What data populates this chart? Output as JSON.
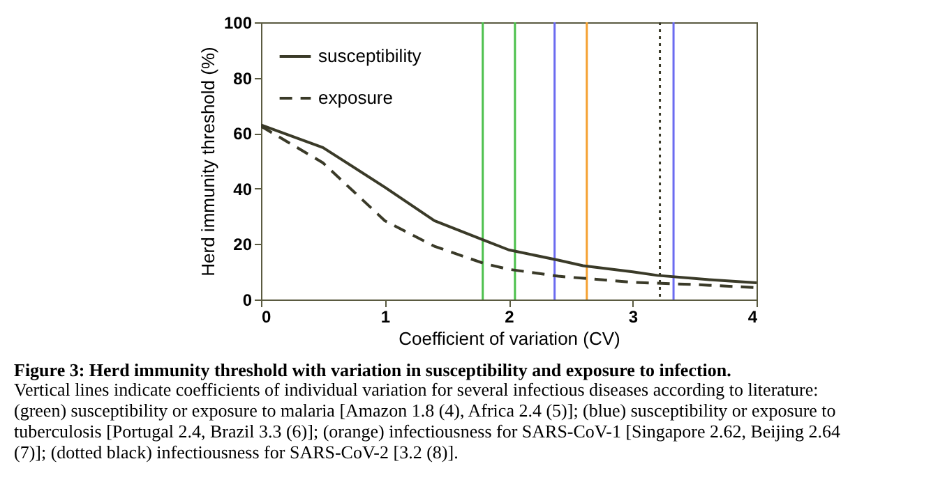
{
  "chart_data": {
    "type": "line",
    "title": "Figure 3: Herd immunity threshold with variation in susceptibility and exposure to infection.",
    "subtitle": "Vertical lines indicate coefficients of individual variation for several infectious diseases according to literature: (green) susceptibility or exposure to malaria [Amazon 1.8 (4), Africa 2.4 (5)]; (blue) susceptibility or exposure to tuberculosis [Portugal 2.4, Brazil 3.3 (6)]; (orange) infectiousness for SARS-CoV-1 [Singapore 2.62, Beijing 2.64 (7)]; (dotted black) infectiousness for SARS-CoV-2 [3.2 (8)].",
    "xlabel": "Coefficient of variation (CV)",
    "ylabel": "Herd immunity threshold (%)",
    "xlim": [
      0,
      4
    ],
    "xticks": [
      0,
      1,
      2,
      3,
      4
    ],
    "ylim": [
      0,
      100
    ],
    "yticks": [
      0,
      20,
      40,
      60,
      80,
      100
    ],
    "grid": false,
    "legend": "top left",
    "series": [
      {
        "name": "susceptibility",
        "color": "#3a3a28",
        "line_style": "solid",
        "x": [
          0,
          0.5,
          1,
          1.4,
          1.8,
          2,
          2.4,
          2.6,
          3,
          3.2,
          3.6,
          4
        ],
        "values": [
          63,
          54.8,
          40.5,
          28.4,
          21.4,
          17.9,
          14.2,
          12.2,
          10,
          8.7,
          7.2,
          6
        ]
      },
      {
        "name": "exposure",
        "color": "#3a3a28",
        "line_style": "dashed",
        "x": [
          0,
          0.5,
          1,
          1.4,
          1.8,
          2,
          2.4,
          3,
          3.5,
          4
        ],
        "values": [
          62.5,
          49.3,
          28.4,
          19.2,
          13,
          10.9,
          8.4,
          6.2,
          5.4,
          4.3
        ]
      }
    ],
    "ref_lines": [
      {
        "axis": "x",
        "value": 1.79,
        "color": "#4cc04c",
        "line_style": "solid"
      },
      {
        "axis": "x",
        "value": 2.05,
        "color": "#4cc04c",
        "line_style": "solid"
      },
      {
        "axis": "x",
        "value": 2.37,
        "color": "#6b6bf0",
        "line_style": "solid"
      },
      {
        "axis": "x",
        "value": 2.63,
        "color": "#f5a030",
        "line_style": "solid"
      },
      {
        "axis": "x",
        "value": 3.22,
        "color": "#3a3a28",
        "line_style": "dotted"
      },
      {
        "axis": "x",
        "value": 3.33,
        "color": "#6b6bf0",
        "line_style": "solid"
      }
    ]
  }
}
